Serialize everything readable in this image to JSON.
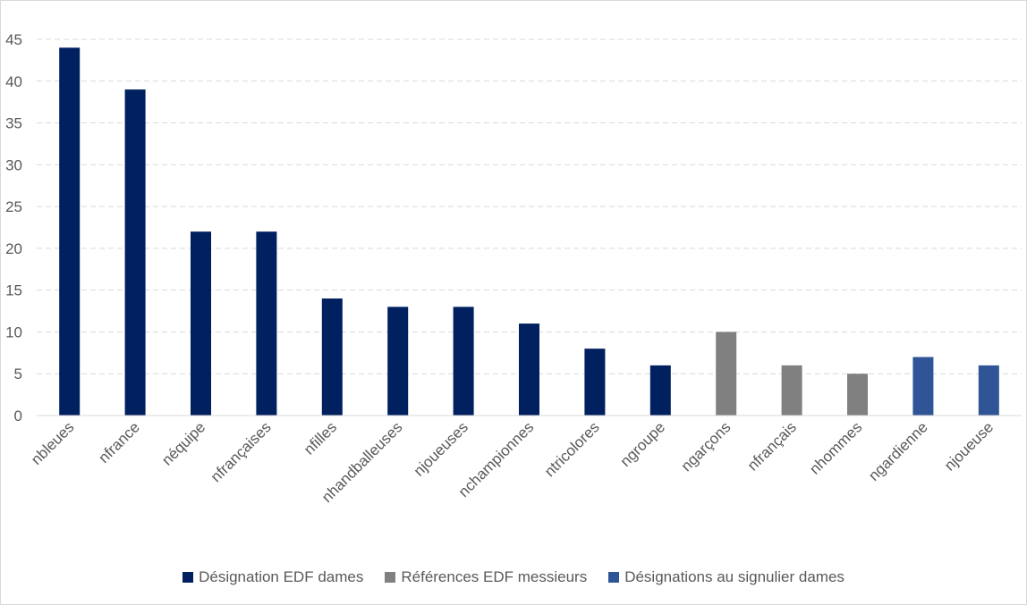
{
  "chart_data": {
    "type": "bar",
    "title": "",
    "xlabel": "",
    "ylabel": "",
    "ylim": [
      0,
      45
    ],
    "yticks": [
      0,
      5,
      10,
      15,
      20,
      25,
      30,
      35,
      40,
      45
    ],
    "grid": true,
    "legend_position": "bottom",
    "categories": [
      "nbleues",
      "nfrance",
      "néquipe",
      "nfrançaises",
      "nfilles",
      "nhandballeuses",
      "njoueuses",
      "nchampionnes",
      "ntricolores",
      "ngroupe",
      "ngarçons",
      "nfrançais",
      "nhommes",
      "ngardienne",
      "njoueuse"
    ],
    "series": [
      {
        "name": "Désignation EDF dames",
        "color": "#002060",
        "values": [
          44,
          39,
          22,
          22,
          14,
          13,
          13,
          11,
          8,
          6,
          null,
          null,
          null,
          null,
          null
        ]
      },
      {
        "name": "Références EDF messieurs",
        "color": "#808080",
        "values": [
          null,
          null,
          null,
          null,
          null,
          null,
          null,
          null,
          null,
          null,
          10,
          6,
          5,
          null,
          null
        ]
      },
      {
        "name": "Désignations au signulier dames",
        "color": "#2F5597",
        "values": [
          null,
          null,
          null,
          null,
          null,
          null,
          null,
          null,
          null,
          null,
          null,
          null,
          null,
          7,
          6
        ]
      }
    ]
  }
}
